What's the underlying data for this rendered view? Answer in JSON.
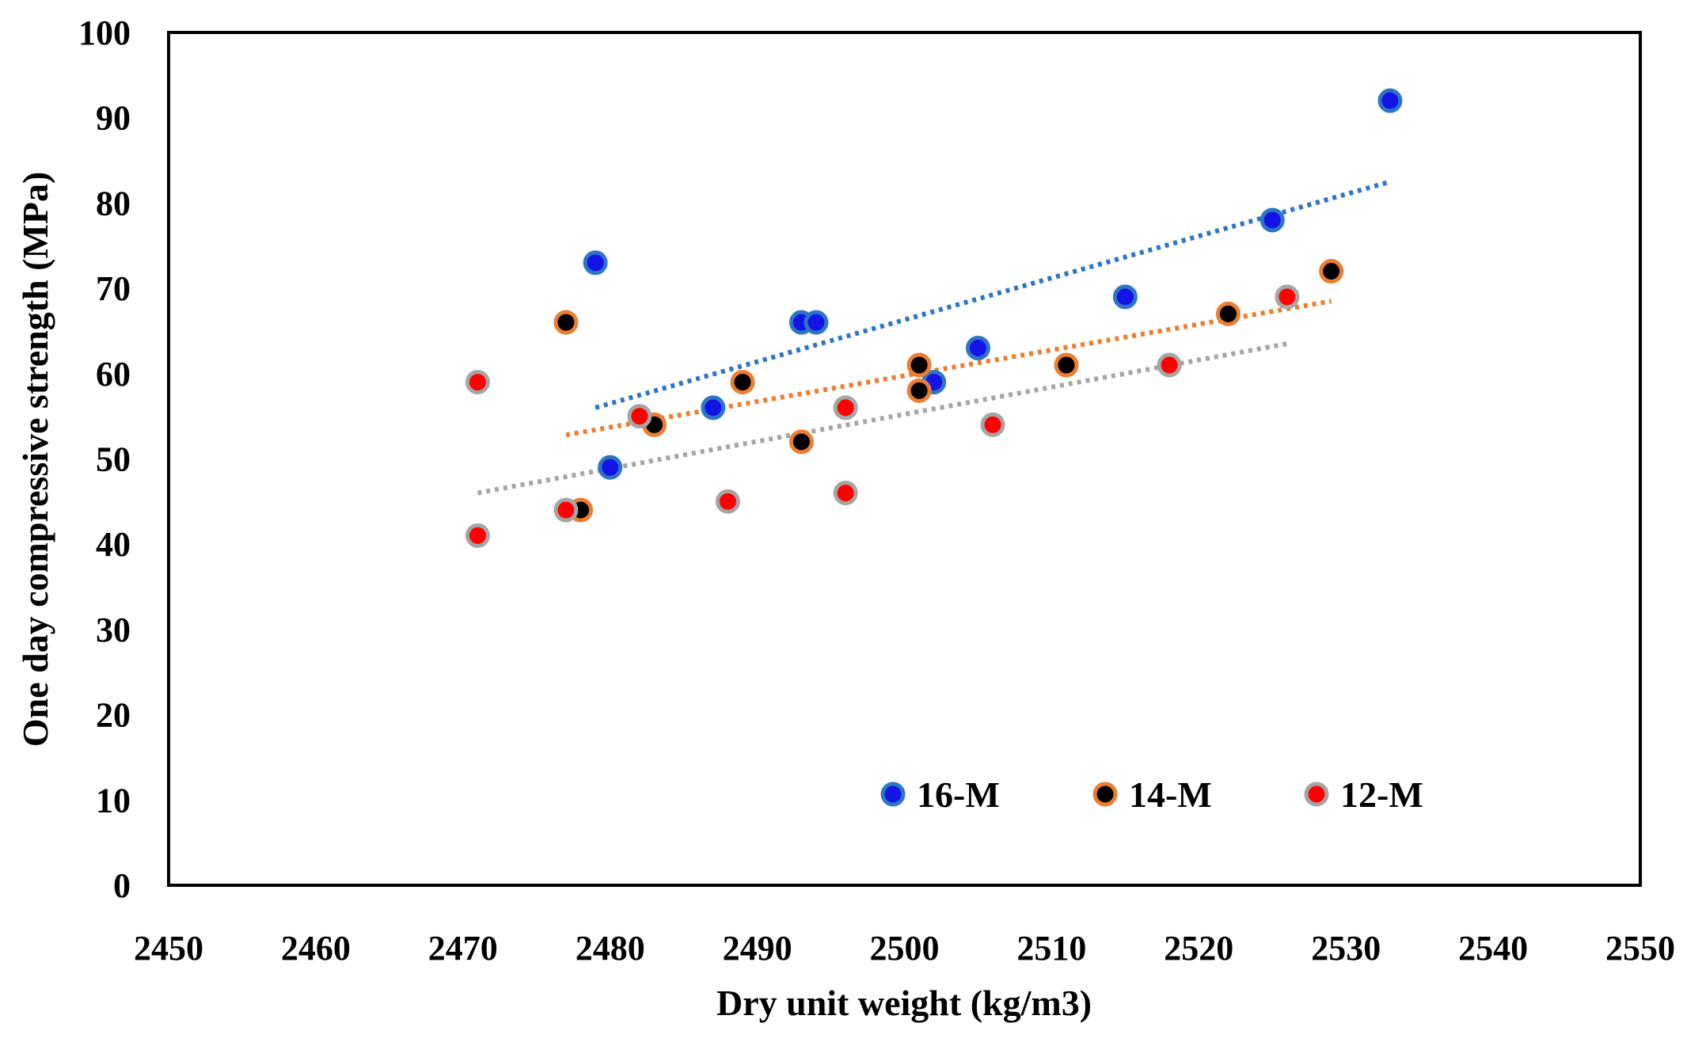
{
  "chart_data": {
    "type": "scatter",
    "title": "",
    "xlabel": "Dry unit weight (kg/m3)",
    "ylabel": "One day compressive strength (MPa)",
    "xlim": [
      2450,
      2550
    ],
    "ylim": [
      0,
      100
    ],
    "xticks": [
      2450,
      2460,
      2470,
      2480,
      2490,
      2500,
      2510,
      2520,
      2530,
      2540,
      2550
    ],
    "yticks": [
      0,
      10,
      20,
      30,
      40,
      50,
      60,
      70,
      80,
      90,
      100
    ],
    "grid": false,
    "legend_position": "bottom-right",
    "series": [
      {
        "name": "16-M",
        "fill": "#1414e6",
        "edge": "#2e75c4",
        "points": [
          [
            2479,
            73
          ],
          [
            2480,
            49
          ],
          [
            2487,
            56
          ],
          [
            2493,
            66
          ],
          [
            2494,
            66
          ],
          [
            2502,
            59
          ],
          [
            2505,
            63
          ],
          [
            2515,
            69
          ],
          [
            2525,
            78
          ],
          [
            2533,
            92
          ]
        ],
        "trendline": {
          "style": "dotted",
          "color": "#2e75c4",
          "x": [
            2479,
            2533
          ],
          "y": [
            56,
            82.5
          ]
        }
      },
      {
        "name": "14-M",
        "fill": "#000000",
        "edge": "#ed7d31",
        "points": [
          [
            2477,
            66
          ],
          [
            2478,
            44
          ],
          [
            2483,
            54
          ],
          [
            2489,
            59
          ],
          [
            2493,
            52
          ],
          [
            2501,
            61
          ],
          [
            2501,
            58
          ],
          [
            2511,
            61
          ],
          [
            2522,
            67
          ],
          [
            2529,
            72
          ]
        ],
        "trendline": {
          "style": "dotted",
          "color": "#ed7d31",
          "x": [
            2477,
            2529
          ],
          "y": [
            52.8,
            68.5
          ]
        }
      },
      {
        "name": "12-M",
        "fill": "#ff0000",
        "edge": "#a5a5a5",
        "points": [
          [
            2471,
            59
          ],
          [
            2471,
            41
          ],
          [
            2477,
            44
          ],
          [
            2482,
            55
          ],
          [
            2488,
            45
          ],
          [
            2496,
            56
          ],
          [
            2496,
            46
          ],
          [
            2506,
            54
          ],
          [
            2518,
            61
          ],
          [
            2526,
            69
          ]
        ],
        "trendline": {
          "style": "dotted",
          "color": "#a5a5a5",
          "x": [
            2471,
            2526
          ],
          "y": [
            46,
            63.5
          ]
        }
      }
    ]
  }
}
